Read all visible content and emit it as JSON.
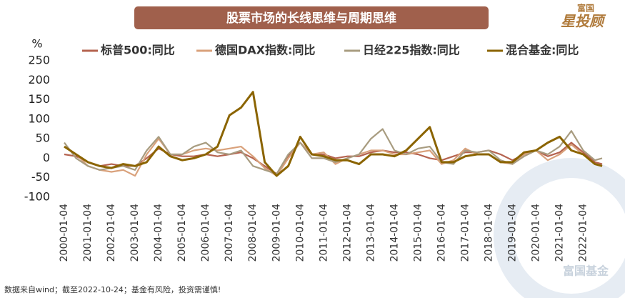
{
  "chart_data": {
    "type": "line",
    "title": "股票市场的长线思维与周期思维",
    "y_label": "%",
    "source": "数据来自wind；截至2022-10-24；基金有风险，投资需谨慎!",
    "logo": {
      "top": "富国",
      "main": "星投顾"
    },
    "watermark": "富国基金",
    "x": [
      "2000-01-04",
      "2000-07-04",
      "2001-01-04",
      "2001-07-04",
      "2002-01-04",
      "2002-07-04",
      "2003-01-04",
      "2003-07-04",
      "2004-01-04",
      "2004-07-04",
      "2005-01-04",
      "2005-07-04",
      "2006-01-04",
      "2006-07-04",
      "2007-01-04",
      "2007-07-04",
      "2008-01-04",
      "2008-07-04",
      "2009-01-04",
      "2009-07-04",
      "2010-01-04",
      "2010-07-04",
      "2011-01-04",
      "2011-07-04",
      "2012-01-04",
      "2012-07-04",
      "2013-01-04",
      "2013-07-04",
      "2014-01-04",
      "2014-07-04",
      "2015-01-04",
      "2015-07-04",
      "2016-01-04",
      "2016-07-04",
      "2017-01-04",
      "2017-07-04",
      "2018-01-04",
      "2018-07-04",
      "2019-01-04",
      "2019-07-04",
      "2020-01-04",
      "2020-07-04",
      "2021-01-04",
      "2021-07-04",
      "2022-01-04",
      "2022-07-04",
      "2022-10-24"
    ],
    "xlim": [
      "2000-01-04",
      "2022-10-24"
    ],
    "xticks": [
      "2000-01-04",
      "2001-01-04",
      "2002-01-04",
      "2003-01-04",
      "2004-01-04",
      "2005-01-04",
      "2006-01-04",
      "2007-01-04",
      "2008-01-04",
      "2009-01-04",
      "2010-01-04",
      "2011-01-04",
      "2012-01-04",
      "2013-01-04",
      "2014-01-04",
      "2015-01-04",
      "2016-01-04",
      "2017-01-04",
      "2018-01-04",
      "2019-01-04",
      "2020-01-04",
      "2021-01-04",
      "2022-01-04"
    ],
    "ylim": [
      -100,
      250
    ],
    "yticks": [
      -100,
      -50,
      0,
      50,
      100,
      150,
      200,
      250
    ],
    "series": [
      {
        "name": "标普500:同比",
        "color": "#b5634f",
        "values": [
          10,
          5,
          -10,
          -20,
          -15,
          -20,
          -20,
          0,
          25,
          10,
          5,
          5,
          10,
          5,
          10,
          15,
          0,
          -20,
          -40,
          5,
          40,
          10,
          10,
          0,
          5,
          5,
          15,
          20,
          15,
          15,
          10,
          0,
          -5,
          5,
          15,
          15,
          20,
          10,
          -5,
          10,
          20,
          5,
          15,
          40,
          15,
          -10,
          -15
        ]
      },
      {
        "name": "德国DAX指数:同比",
        "color": "#d9a17b",
        "values": [
          30,
          10,
          -20,
          -30,
          -35,
          -30,
          -45,
          10,
          50,
          10,
          10,
          20,
          25,
          20,
          25,
          30,
          5,
          -25,
          -45,
          0,
          40,
          10,
          15,
          -15,
          0,
          10,
          20,
          20,
          10,
          10,
          15,
          20,
          -15,
          -5,
          25,
          10,
          10,
          -10,
          -15,
          10,
          20,
          -5,
          10,
          35,
          10,
          -15,
          -20
        ]
      },
      {
        "name": "日经225指数:同比",
        "color": "#a89c80",
        "values": [
          40,
          0,
          -20,
          -30,
          -25,
          -20,
          -30,
          20,
          55,
          10,
          10,
          30,
          40,
          15,
          10,
          20,
          -20,
          -30,
          -40,
          10,
          40,
          0,
          0,
          -10,
          0,
          10,
          50,
          75,
          20,
          10,
          25,
          30,
          -10,
          -15,
          20,
          15,
          20,
          -5,
          -15,
          5,
          20,
          10,
          30,
          70,
          20,
          -5,
          0
        ]
      },
      {
        "name": "混合基金:同比",
        "color": "#8b6400",
        "values": [
          30,
          10,
          -10,
          -20,
          -25,
          -15,
          -20,
          -10,
          30,
          5,
          -5,
          0,
          10,
          30,
          110,
          130,
          170,
          -10,
          -45,
          -20,
          55,
          10,
          5,
          -5,
          -5,
          -15,
          10,
          10,
          5,
          20,
          50,
          80,
          -10,
          -10,
          5,
          10,
          10,
          -10,
          -10,
          15,
          20,
          40,
          55,
          20,
          10,
          -15,
          -20
        ]
      }
    ]
  }
}
